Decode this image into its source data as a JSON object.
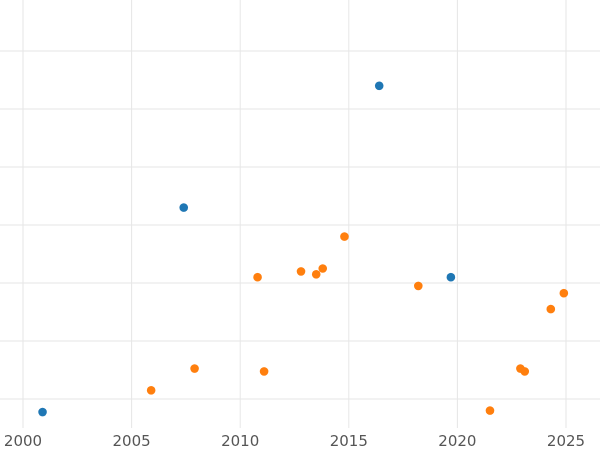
{
  "chart_data": {
    "type": "scatter",
    "title": "",
    "xlabel": "",
    "ylabel": "",
    "xlim": [
      1999.5,
      2026.5
    ],
    "ylim": [
      0,
      15
    ],
    "grid": true,
    "x_ticks": [
      "2000",
      "2005",
      "2010",
      "2015",
      "2020",
      "2025"
    ],
    "y_gridlines": [
      1,
      3,
      5,
      7,
      9,
      11,
      13,
      15
    ],
    "series": [
      {
        "color": "#1f77b4",
        "points": [
          {
            "x": 2000.9,
            "y": 0.55
          },
          {
            "x": 2007.4,
            "y": 7.6
          },
          {
            "x": 2016.4,
            "y": 11.8
          },
          {
            "x": 2019.7,
            "y": 5.2
          }
        ]
      },
      {
        "color": "#ff7f0e",
        "points": [
          {
            "x": 2005.9,
            "y": 1.3
          },
          {
            "x": 2007.9,
            "y": 2.05
          },
          {
            "x": 2010.8,
            "y": 5.2
          },
          {
            "x": 2011.1,
            "y": 1.95
          },
          {
            "x": 2012.8,
            "y": 5.4
          },
          {
            "x": 2013.5,
            "y": 5.3
          },
          {
            "x": 2013.8,
            "y": 5.5
          },
          {
            "x": 2014.8,
            "y": 6.6
          },
          {
            "x": 2018.2,
            "y": 4.9
          },
          {
            "x": 2021.5,
            "y": 0.6
          },
          {
            "x": 2022.9,
            "y": 2.05
          },
          {
            "x": 2023.1,
            "y": 1.95
          },
          {
            "x": 2024.3,
            "y": 4.1
          },
          {
            "x": 2024.9,
            "y": 4.65
          }
        ]
      }
    ]
  }
}
